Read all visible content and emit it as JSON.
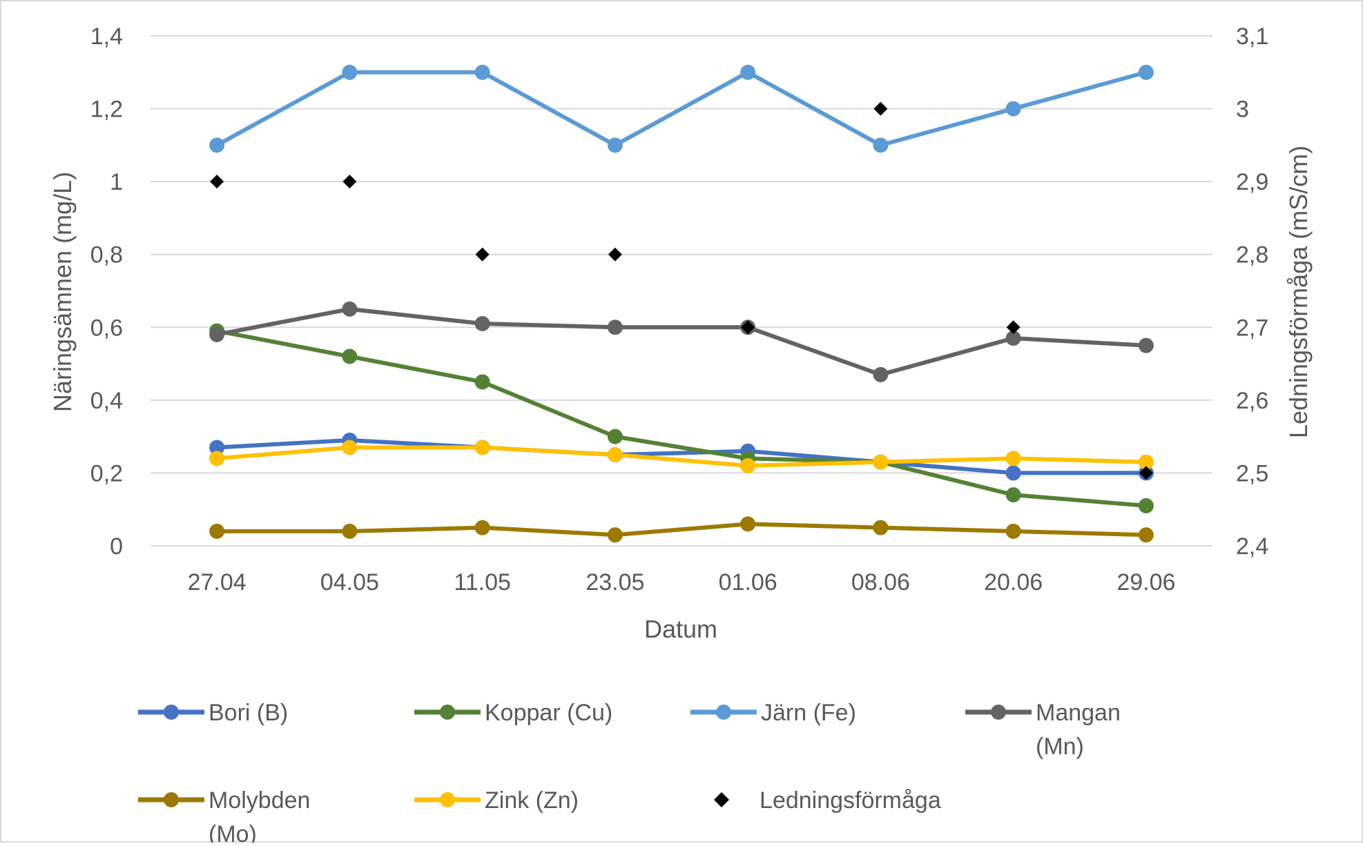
{
  "chart_data": {
    "type": "line",
    "title": "",
    "xlabel": "Datum",
    "ylabel": "Näringsämnen (mg/L)",
    "y2label": "Ledningsförmåga (mS/cm)",
    "categories": [
      "27.04",
      "04.05",
      "11.05",
      "23.05",
      "01.06",
      "08.06",
      "20.06",
      "29.06"
    ],
    "ylim": [
      0,
      1.4
    ],
    "y_ticks": [
      "0",
      "0,2",
      "0,4",
      "0,6",
      "0,8",
      "1",
      "1,2",
      "1,4"
    ],
    "y2lim": [
      2.4,
      3.1
    ],
    "y2_ticks": [
      "2,4",
      "2,5",
      "2,6",
      "2,7",
      "2,8",
      "2,9",
      "3",
      "3,1"
    ],
    "grid": true,
    "legend_position": "bottom",
    "series": [
      {
        "name": "Bori (B)",
        "color": "#4472C4",
        "axis": "left",
        "values": [
          0.27,
          0.29,
          0.27,
          0.25,
          0.26,
          0.23,
          0.2,
          0.2
        ]
      },
      {
        "name": "Koppar (Cu)",
        "color": "#548235",
        "axis": "left",
        "values": [
          0.59,
          0.52,
          0.45,
          0.3,
          0.24,
          0.23,
          0.14,
          0.11
        ]
      },
      {
        "name": "Järn (Fe)",
        "color": "#5B9BD5",
        "axis": "left",
        "values": [
          1.1,
          1.3,
          1.3,
          1.1,
          1.3,
          1.1,
          1.2,
          1.3
        ]
      },
      {
        "name": "Mangan (Mn)",
        "color": "#636363",
        "axis": "left",
        "values": [
          0.58,
          0.65,
          0.61,
          0.6,
          0.6,
          0.47,
          0.57,
          0.55
        ]
      },
      {
        "name": "Molybden (Mo)",
        "color": "#9C7A00",
        "axis": "left",
        "values": [
          0.04,
          0.04,
          0.05,
          0.03,
          0.06,
          0.05,
          0.04,
          0.03
        ]
      },
      {
        "name": "Zink (Zn)",
        "color": "#FFC000",
        "axis": "left",
        "values": [
          0.24,
          0.27,
          0.27,
          0.25,
          0.22,
          0.23,
          0.24,
          0.23
        ]
      },
      {
        "name": "Ledningsförmåga",
        "color": "#000000",
        "axis": "right",
        "marker": "diamond",
        "line": false,
        "values": [
          2.9,
          2.9,
          2.8,
          2.8,
          2.7,
          3.0,
          2.7,
          2.5
        ]
      }
    ]
  }
}
